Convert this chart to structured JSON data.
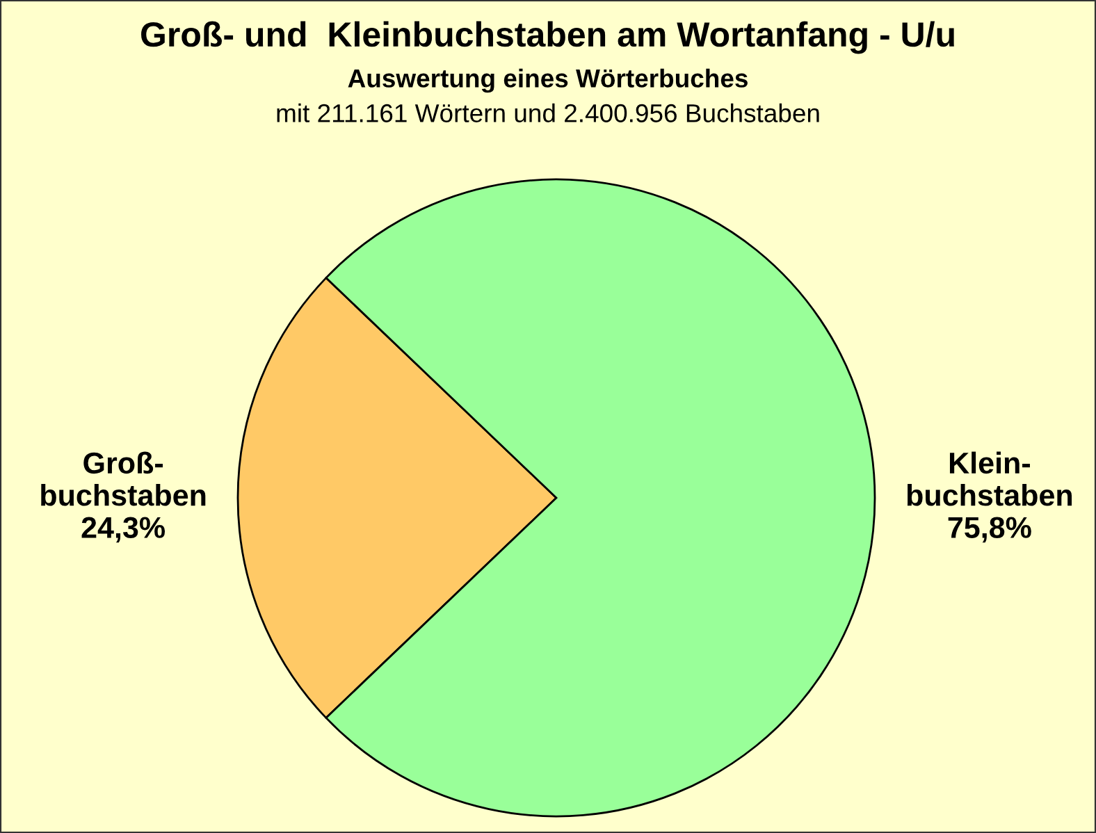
{
  "chart_data": {
    "type": "pie",
    "title": "Groß- und  Kleinbuchstaben am Wortanfang - U/u",
    "subtitle": "Auswertung eines Wörterbuches",
    "annotations": [
      "mit 211.161 Wörtern und 2.400.956 Buchstaben"
    ],
    "categories": [
      "Groß-\nbuchstaben",
      "Klein-\nbuchstaben"
    ],
    "values": [
      24.3,
      75.8
    ],
    "colors": [
      "#ffc966",
      "#99ff99"
    ],
    "value_labels": [
      "24,3%",
      "75,8%"
    ]
  }
}
